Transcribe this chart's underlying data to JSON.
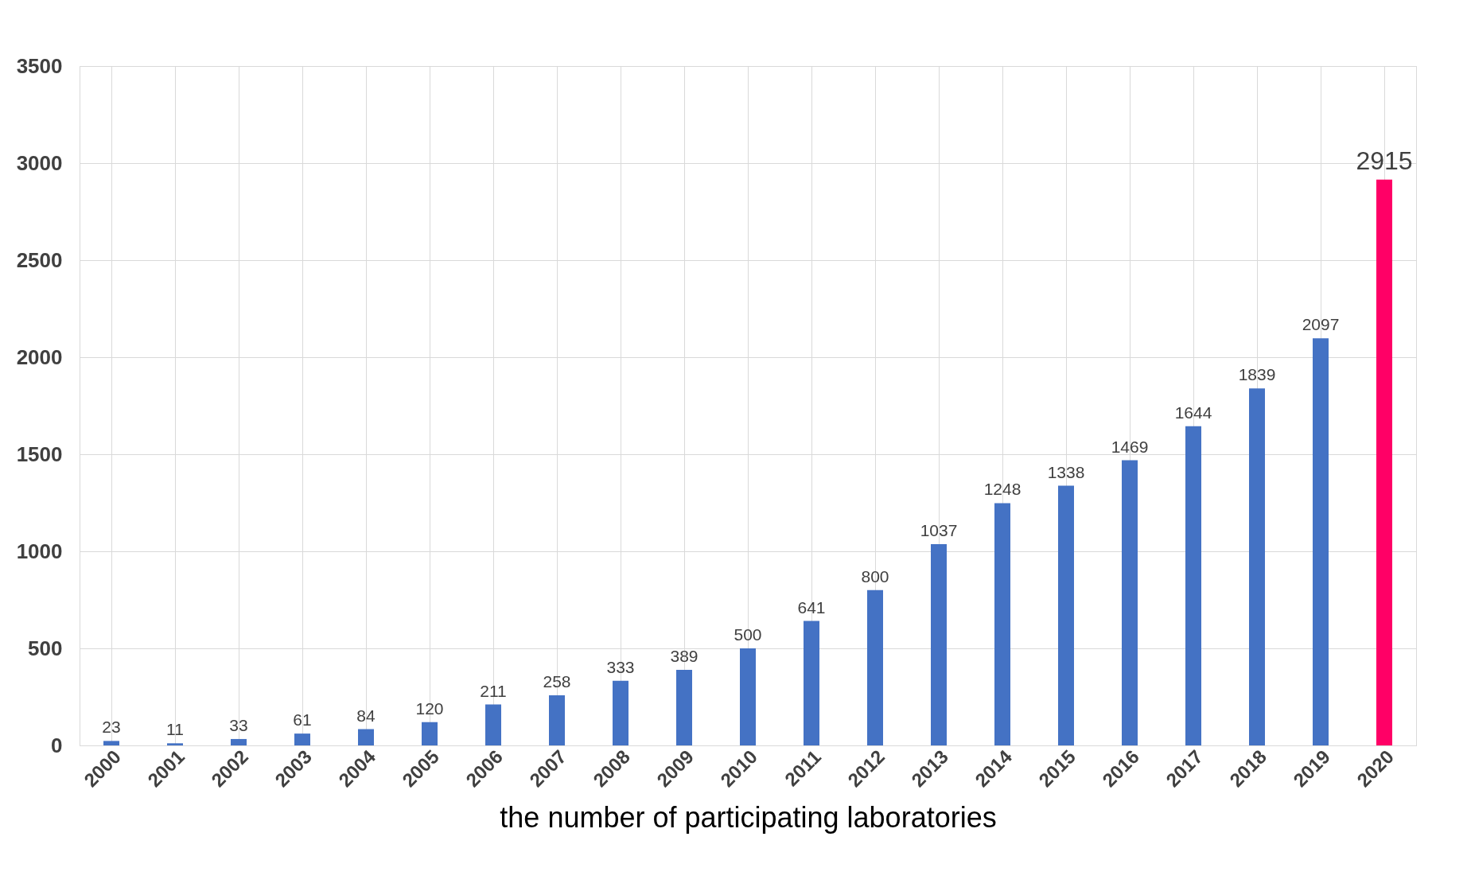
{
  "chart_data": {
    "type": "bar",
    "xlabel": "the number of participating laboratories",
    "categories": [
      "2000",
      "2001",
      "2002",
      "2003",
      "2004",
      "2005",
      "2006",
      "2007",
      "2008",
      "2009",
      "2010",
      "2011",
      "2012",
      "2013",
      "2014",
      "2015",
      "2016",
      "2017",
      "2018",
      "2019",
      "2020"
    ],
    "values": [
      23,
      11,
      33,
      61,
      84,
      120,
      211,
      258,
      333,
      389,
      500,
      641,
      800,
      1037,
      1248,
      1338,
      1469,
      1644,
      1839,
      2097,
      2915
    ],
    "colors": [
      "#4472c4",
      "#4472c4",
      "#4472c4",
      "#4472c4",
      "#4472c4",
      "#4472c4",
      "#4472c4",
      "#4472c4",
      "#4472c4",
      "#4472c4",
      "#4472c4",
      "#4472c4",
      "#4472c4",
      "#4472c4",
      "#4472c4",
      "#4472c4",
      "#4472c4",
      "#4472c4",
      "#4472c4",
      "#4472c4",
      "#ff0066"
    ],
    "ylim": [
      0,
      3500
    ],
    "yticks": [
      0,
      500,
      1000,
      1500,
      2000,
      2500,
      3000,
      3500
    ],
    "grid": true,
    "data_labels": true
  }
}
